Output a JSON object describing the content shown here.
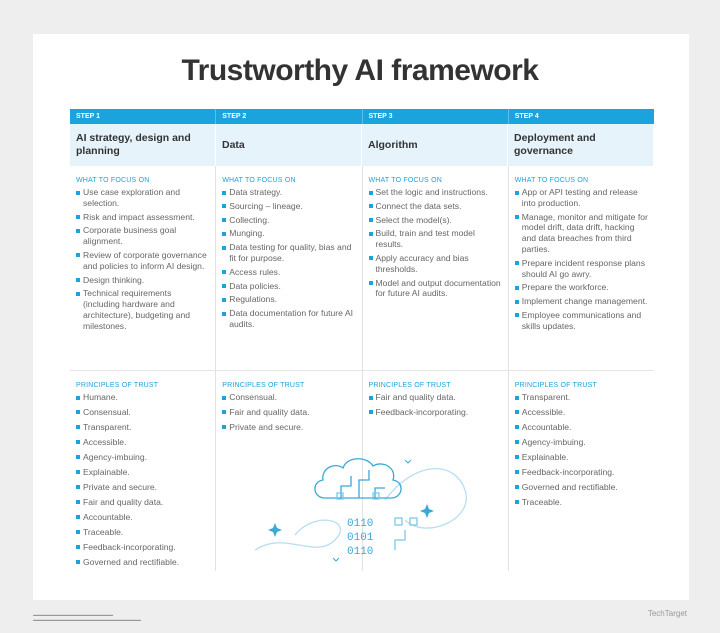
{
  "title": "Trustworthy AI framework",
  "focus_label": "WHAT TO FOCUS ON",
  "trust_label": "PRINCIPLES OF TRUST",
  "accent_color": "#1aa3dc",
  "steps": [
    {
      "step": "STEP 1",
      "heading": "AI strategy, design and planning",
      "focus": [
        "Use case exploration and selection.",
        "Risk and impact assessment.",
        "Corporate business goal alignment.",
        "Review of corporate governance and policies to inform AI design.",
        "Design thinking.",
        "Technical requirements (including hardware and architecture), budgeting and milestones."
      ],
      "trust": [
        "Humane.",
        "Consensual.",
        "Transparent.",
        "Accessible.",
        "Agency-imbuing.",
        "Explainable.",
        "Private and secure.",
        "Fair and quality data.",
        "Accountable.",
        "Traceable.",
        "Feedback-incorporating.",
        "Governed and rectifiable."
      ]
    },
    {
      "step": "STEP 2",
      "heading": "Data",
      "focus": [
        "Data strategy.",
        "Sourcing – lineage.",
        "Collecting.",
        "Munging.",
        "Data testing for quality, bias and fit for purpose.",
        "Access rules.",
        "Data policies.",
        "Regulations.",
        "Data documentation for future AI audits."
      ],
      "trust": [
        "Consensual.",
        "Fair and quality data.",
        "Private and secure."
      ]
    },
    {
      "step": "STEP 3",
      "heading": "Algorithm",
      "focus": [
        "Set the logic and instructions.",
        "Connect the data sets.",
        "Select the model(s).",
        "Build, train and test model results.",
        "Apply accuracy and bias thresholds.",
        "Model and output documentation for future AI audits."
      ],
      "trust": [
        "Fair and quality data.",
        "Feedback-incorporating."
      ]
    },
    {
      "step": "STEP 4",
      "heading": "Deployment and governance",
      "focus": [
        "App or API testing and release into production.",
        "Manage, monitor and mitigate for model drift, data drift, hacking and data breaches from third parties.",
        "Prepare incident response plans should AI go awry.",
        "Prepare the workforce.",
        "Implement change management.",
        "Employee communications and skills updates."
      ],
      "trust": [
        "Transparent.",
        "Accessible.",
        "Accountable.",
        "Agency-imbuing.",
        "Explainable.",
        "Feedback-incorporating.",
        "Governed and rectifiable.",
        "Traceable."
      ]
    }
  ],
  "illustration": {
    "icon": "cloud-circuit-brain-icon",
    "binary": [
      "0110",
      "0101",
      "0110"
    ]
  },
  "logo": "TechTarget"
}
